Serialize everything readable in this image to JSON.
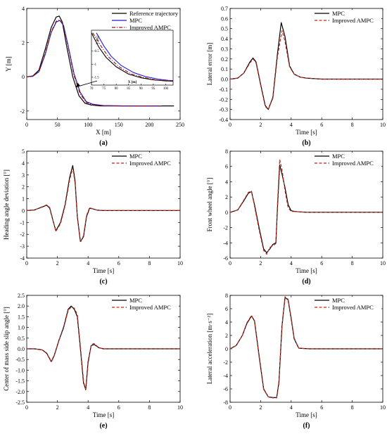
{
  "panels": [
    {
      "id": "a",
      "label": "(a)",
      "xlabel": "X [m]",
      "ylabel": "Y [m]",
      "xlim": [
        0,
        250
      ],
      "ylim": [
        -2.5,
        4
      ],
      "xticks": [
        0,
        50,
        100,
        150,
        200,
        250
      ],
      "yticks": [
        -2,
        0,
        2,
        4
      ],
      "legend": [
        "Reference trajectory",
        "MPC",
        "Improved AMPC"
      ],
      "inset": {
        "xlabel": "X [m]",
        "ylabel": "Y [m]",
        "xticks": [
          70,
          75,
          80,
          85,
          90,
          95,
          100
        ],
        "yticks": [
          -0.5,
          -1,
          -1.5
        ]
      }
    },
    {
      "id": "b",
      "label": "(b)",
      "xlabel": "Time [s]",
      "ylabel": "Lateral error [m]",
      "xlim": [
        0,
        10
      ],
      "ylim": [
        -0.4,
        0.7
      ],
      "xticks": [
        0,
        2,
        4,
        6,
        8,
        10
      ],
      "yticks": [
        -0.4,
        -0.3,
        -0.2,
        -0.1,
        0.0,
        0.1,
        0.2,
        0.3,
        0.4,
        0.5,
        0.6,
        0.7
      ],
      "legend": [
        "MPC",
        "Improved AMPC"
      ]
    },
    {
      "id": "c",
      "label": "(c)",
      "xlabel": "Time [s]",
      "ylabel": "Heading angle deviation [°]",
      "xlim": [
        0,
        10
      ],
      "ylim": [
        -4,
        5
      ],
      "xticks": [
        0,
        2,
        4,
        6,
        8,
        10
      ],
      "yticks": [
        -4,
        -3,
        -2,
        -1,
        0,
        1,
        2,
        3,
        4,
        5
      ],
      "legend": [
        "MPC",
        "Improved AMPC"
      ]
    },
    {
      "id": "d",
      "label": "(d)",
      "xlabel": "Time [s]",
      "ylabel": "Front wheel angle [°]",
      "xlim": [
        0,
        10
      ],
      "ylim": [
        -6,
        8
      ],
      "xticks": [
        0,
        2,
        4,
        6,
        8,
        10
      ],
      "yticks": [
        -6,
        -4,
        -2,
        0,
        2,
        4,
        6,
        8
      ],
      "legend": [
        "MPC",
        "Improved AMPC"
      ]
    },
    {
      "id": "e",
      "label": "(e)",
      "xlabel": "Time [s]",
      "ylabel": "Center of mass side slip angle [°]",
      "xlim": [
        0,
        10
      ],
      "ylim": [
        -2.5,
        2.5
      ],
      "xticks": [
        0,
        2,
        4,
        6,
        8,
        10
      ],
      "yticks": [
        -2.5,
        -2.0,
        -1.5,
        -1.0,
        -0.5,
        0.0,
        0.5,
        1.0,
        1.5,
        2.0,
        2.5
      ],
      "legend": [
        "MPC",
        "Improved AMPC"
      ]
    },
    {
      "id": "f",
      "label": "(f)",
      "xlabel": "Time [s]",
      "ylabel": "Lateral acceleration [m·s⁻²]",
      "xlim": [
        0,
        10
      ],
      "ylim": [
        -8,
        8
      ],
      "xticks": [
        0,
        2,
        4,
        6,
        8,
        10
      ],
      "yticks": [
        -8,
        -6,
        -4,
        -2,
        0,
        2,
        4,
        6,
        8
      ],
      "legend": [
        "MPC",
        "Improved AMPC"
      ]
    }
  ],
  "chart_data": [
    {
      "type": "line",
      "panel": "a",
      "series": [
        {
          "name": "Reference trajectory",
          "color": "#000000",
          "style": "solid",
          "x": [
            0,
            10,
            20,
            30,
            40,
            48,
            53,
            58,
            65,
            75,
            85,
            95,
            105,
            120,
            160,
            200,
            240
          ],
          "y": [
            0,
            0.05,
            0.4,
            1.6,
            2.9,
            3.5,
            3.55,
            3.2,
            1.8,
            0.0,
            -1.1,
            -1.55,
            -1.65,
            -1.7,
            -1.7,
            -1.7,
            -1.7
          ]
        },
        {
          "name": "MPC",
          "color": "#1f1fd6",
          "style": "solid",
          "x": [
            0,
            10,
            20,
            30,
            40,
            48,
            54,
            60,
            67,
            77,
            87,
            97,
            107,
            125,
            160,
            200,
            220
          ],
          "y": [
            0,
            0.03,
            0.3,
            1.3,
            2.6,
            3.2,
            3.3,
            3.0,
            1.9,
            0.2,
            -0.9,
            -1.45,
            -1.6,
            -1.68,
            -1.7,
            -1.7,
            -1.7
          ]
        },
        {
          "name": "Improved AMPC",
          "color": "#a01010",
          "style": "dashdot",
          "x": [
            0,
            10,
            20,
            30,
            40,
            48,
            54,
            60,
            67,
            77,
            87,
            97,
            107,
            125,
            160,
            200,
            220
          ],
          "y": [
            0,
            0.03,
            0.32,
            1.35,
            2.65,
            3.25,
            3.33,
            3.0,
            1.85,
            0.1,
            -1.0,
            -1.5,
            -1.63,
            -1.69,
            -1.7,
            -1.7,
            -1.7
          ]
        }
      ],
      "inset_series": [
        {
          "name": "Reference trajectory",
          "color": "#000000",
          "style": "solid",
          "x": [
            70,
            73,
            76,
            80,
            85,
            90,
            95,
            100,
            103
          ],
          "y": [
            0.2,
            -0.35,
            -0.75,
            -1.1,
            -1.38,
            -1.52,
            -1.6,
            -1.64,
            -1.65
          ]
        },
        {
          "name": "MPC",
          "color": "#1f1fd6",
          "style": "solid",
          "x": [
            72,
            75,
            78,
            82,
            87,
            92,
            97,
            101,
            103
          ],
          "y": [
            0.2,
            -0.3,
            -0.7,
            -1.05,
            -1.32,
            -1.48,
            -1.57,
            -1.62,
            -1.63
          ]
        },
        {
          "name": "Improved AMPC",
          "color": "#a01010",
          "style": "dashdot",
          "x": [
            70.5,
            74,
            77,
            81,
            86,
            91,
            96,
            100,
            103
          ],
          "y": [
            0.2,
            -0.33,
            -0.73,
            -1.09,
            -1.37,
            -1.51,
            -1.6,
            -1.63,
            -1.64
          ]
        }
      ]
    },
    {
      "type": "line",
      "panel": "b",
      "series": [
        {
          "name": "MPC",
          "color": "#000000",
          "style": "solid",
          "x": [
            0,
            0.5,
            0.9,
            1.3,
            1.5,
            1.7,
            2.0,
            2.3,
            2.5,
            2.8,
            3.1,
            3.35,
            3.6,
            3.9,
            4.2,
            4.6,
            5,
            6,
            10
          ],
          "y": [
            0,
            0.01,
            0.06,
            0.17,
            0.21,
            0.17,
            -0.05,
            -0.26,
            -0.3,
            -0.18,
            0.25,
            0.56,
            0.42,
            0.13,
            0.05,
            0.02,
            0.01,
            0,
            0
          ]
        },
        {
          "name": "Improved AMPC",
          "color": "#c0281c",
          "style": "dashed",
          "x": [
            0,
            0.5,
            0.9,
            1.3,
            1.5,
            1.7,
            2.0,
            2.3,
            2.5,
            2.8,
            3.1,
            3.4,
            3.6,
            3.9,
            4.2,
            4.6,
            5,
            6,
            10
          ],
          "y": [
            0,
            0.01,
            0.06,
            0.16,
            0.2,
            0.16,
            -0.06,
            -0.27,
            -0.3,
            -0.19,
            0.22,
            0.48,
            0.37,
            0.12,
            0.05,
            0.02,
            0.01,
            0,
            0
          ]
        }
      ]
    },
    {
      "type": "line",
      "panel": "c",
      "series": [
        {
          "name": "MPC",
          "color": "#000000",
          "style": "solid",
          "x": [
            0,
            0.5,
            1.0,
            1.3,
            1.5,
            1.7,
            1.9,
            2.2,
            2.5,
            2.8,
            3.0,
            3.15,
            3.3,
            3.5,
            3.7,
            3.9,
            4.1,
            4.3,
            4.6,
            5,
            6,
            10
          ],
          "y": [
            0,
            0.05,
            0.3,
            0.45,
            0.2,
            -0.8,
            -1.7,
            -1.0,
            0.5,
            2.8,
            3.8,
            2.5,
            -0.5,
            -2.6,
            -2.2,
            -0.5,
            0.2,
            0.15,
            0.03,
            0,
            0,
            0
          ]
        },
        {
          "name": "Improved AMPC",
          "color": "#c0281c",
          "style": "dashed",
          "x": [
            0,
            0.5,
            1.0,
            1.3,
            1.5,
            1.7,
            1.9,
            2.2,
            2.5,
            2.8,
            3.0,
            3.15,
            3.3,
            3.5,
            3.7,
            3.9,
            4.1,
            4.3,
            4.6,
            5,
            6,
            10
          ],
          "y": [
            0,
            0.05,
            0.32,
            0.48,
            0.25,
            -0.75,
            -1.75,
            -1.1,
            0.4,
            2.6,
            3.6,
            2.3,
            -0.6,
            -2.7,
            -2.1,
            -0.4,
            0.25,
            0.15,
            0.03,
            0,
            0,
            0
          ]
        }
      ]
    },
    {
      "type": "line",
      "panel": "d",
      "series": [
        {
          "name": "MPC",
          "color": "#000000",
          "style": "solid",
          "x": [
            0,
            0.5,
            0.9,
            1.2,
            1.4,
            1.6,
            1.9,
            2.2,
            2.4,
            2.6,
            2.8,
            3.0,
            3.1,
            3.25,
            3.4,
            3.6,
            3.8,
            4.0,
            4.3,
            4.6,
            5,
            6,
            10
          ],
          "y": [
            0,
            0.3,
            1.5,
            2.5,
            2.7,
            1.0,
            -2.0,
            -4.8,
            -5.3,
            -4.8,
            -4.2,
            -4.0,
            0.5,
            6.2,
            5.0,
            3.2,
            1.0,
            0.2,
            0.1,
            0.05,
            0,
            0,
            0
          ]
        },
        {
          "name": "Improved AMPC",
          "color": "#c0281c",
          "style": "dashed",
          "x": [
            0,
            0.5,
            0.9,
            1.2,
            1.4,
            1.6,
            1.9,
            2.2,
            2.4,
            2.6,
            2.8,
            3.0,
            3.1,
            3.25,
            3.4,
            3.6,
            3.8,
            4.0,
            4.3,
            4.6,
            5,
            6,
            10
          ],
          "y": [
            0,
            0.3,
            1.6,
            2.6,
            2.8,
            0.8,
            -2.3,
            -5.0,
            -5.5,
            -4.6,
            -4.4,
            -4.1,
            1.0,
            6.9,
            5.6,
            2.8,
            0.6,
            0.1,
            0.1,
            0.05,
            0,
            0,
            0
          ]
        }
      ]
    },
    {
      "type": "line",
      "panel": "e",
      "series": [
        {
          "name": "MPC",
          "color": "#000000",
          "style": "solid",
          "x": [
            0,
            0.5,
            1.0,
            1.3,
            1.6,
            1.8,
            2.1,
            2.4,
            2.7,
            2.9,
            3.1,
            3.3,
            3.5,
            3.7,
            3.85,
            4.0,
            4.2,
            4.4,
            4.7,
            5,
            6,
            10
          ],
          "y": [
            0,
            0,
            -0.05,
            -0.2,
            -0.6,
            -0.3,
            0.4,
            1.0,
            1.85,
            2.0,
            1.85,
            1.5,
            0.0,
            -1.6,
            -1.9,
            -0.6,
            0.15,
            0.2,
            0.05,
            0,
            0,
            0
          ]
        },
        {
          "name": "Improved AMPC",
          "color": "#c0281c",
          "style": "dashed",
          "x": [
            0,
            0.5,
            1.0,
            1.3,
            1.6,
            1.8,
            2.1,
            2.4,
            2.7,
            2.9,
            3.1,
            3.3,
            3.5,
            3.7,
            3.85,
            4.0,
            4.2,
            4.4,
            4.7,
            5,
            6,
            10
          ],
          "y": [
            0,
            0,
            -0.05,
            -0.22,
            -0.62,
            -0.32,
            0.38,
            0.95,
            1.8,
            1.95,
            1.9,
            1.6,
            0.1,
            -1.5,
            -1.95,
            -0.7,
            0.2,
            0.25,
            0.05,
            0,
            0,
            0
          ]
        }
      ]
    },
    {
      "type": "line",
      "panel": "f",
      "series": [
        {
          "name": "MPC",
          "color": "#000000",
          "style": "solid",
          "x": [
            0,
            0.4,
            0.8,
            1.1,
            1.4,
            1.6,
            1.9,
            2.2,
            2.5,
            2.8,
            3.05,
            3.2,
            3.4,
            3.6,
            3.8,
            4.0,
            4.2,
            4.5,
            4.8,
            5.2,
            6,
            10
          ],
          "y": [
            0,
            0.5,
            2.0,
            3.8,
            4.9,
            4.2,
            -1.0,
            -6.0,
            -7.2,
            -7.3,
            -7.3,
            -5.0,
            3.5,
            7.7,
            7.3,
            4.5,
            1.5,
            0.1,
            0.05,
            0,
            0,
            0
          ]
        },
        {
          "name": "Improved AMPC",
          "color": "#c0281c",
          "style": "dashed",
          "x": [
            0,
            0.4,
            0.8,
            1.1,
            1.4,
            1.6,
            1.9,
            2.2,
            2.5,
            2.8,
            3.05,
            3.2,
            3.4,
            3.6,
            3.8,
            4.0,
            4.2,
            4.5,
            4.8,
            5.2,
            6,
            10
          ],
          "y": [
            0,
            0.5,
            2.0,
            3.9,
            5.0,
            4.1,
            -1.2,
            -6.1,
            -7.2,
            -7.35,
            -7.35,
            -5.2,
            3.3,
            7.8,
            7.4,
            4.7,
            1.6,
            0.1,
            0.05,
            0,
            0,
            0
          ]
        }
      ]
    }
  ]
}
